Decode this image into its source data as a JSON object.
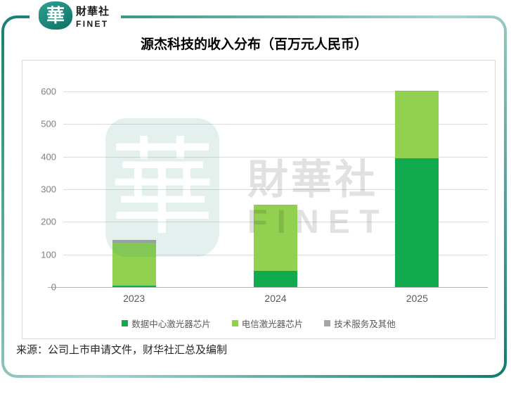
{
  "brand": {
    "logo_glyph": "華",
    "name_cn": "財華社",
    "name_en": "FINET"
  },
  "watermark": {
    "logo_glyph": "華",
    "name_cn": "財華社",
    "name_en": "FINET"
  },
  "source_note": "来源：公司上市申请文件，财华社汇总及编制",
  "colors": {
    "brand_teal": "#157F73",
    "grid": "#DCDCDC",
    "axis": "#B3B3B3",
    "datacenter_green": "#12AA4E",
    "telecom_green": "#92D050",
    "services_gray": "#A6A6A6"
  },
  "chart_data": {
    "type": "bar",
    "stacked": true,
    "title": "源杰科技的收入分布（百万元人民币）",
    "categories": [
      "2023",
      "2024",
      "2025"
    ],
    "series": [
      {
        "name": "数据中心激光器芯片",
        "color": "#12AA4E",
        "values": [
          4,
          49,
          395
        ]
      },
      {
        "name": "电信激光器芯片",
        "color": "#92D050",
        "values": [
          131,
          201,
          205
        ]
      },
      {
        "name": "技术服务及其他",
        "color": "#A6A6A6",
        "values": [
          10,
          2,
          2
        ]
      }
    ],
    "totals": [
      145,
      252,
      602
    ],
    "xlabel": "",
    "ylabel": "",
    "ylim": [
      0,
      600
    ],
    "yticks": [
      0,
      100,
      200,
      300,
      400,
      500,
      600
    ],
    "grid": true,
    "legend_position": "bottom"
  }
}
